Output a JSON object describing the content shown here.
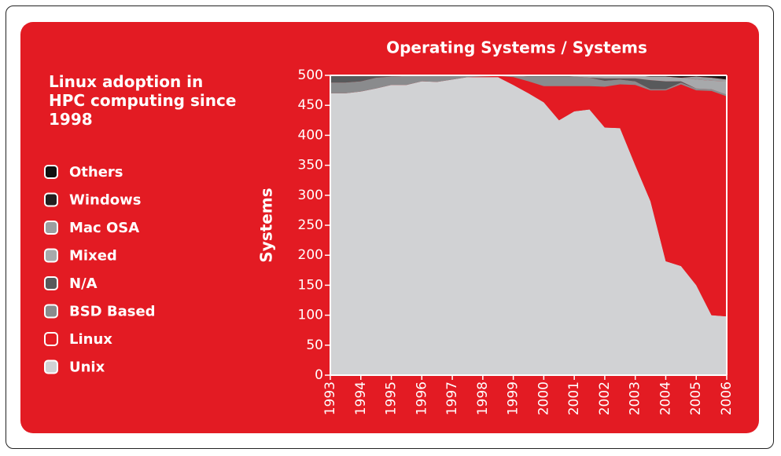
{
  "chart_data": {
    "type": "stacked-area",
    "title": "Operating Systems / Systems",
    "subtitle": "Linux adoption in HPC computing since 1998",
    "ylabel": "Systems",
    "x": [
      1993,
      1993.5,
      1994,
      1994.5,
      1995,
      1995.5,
      1996,
      1996.5,
      1997,
      1997.5,
      1998,
      1998.5,
      1999,
      1999.5,
      2000,
      2000.5,
      2001,
      2001.5,
      2002,
      2002.5,
      2003,
      2003.5,
      2004,
      2004.5,
      2005,
      2005.5,
      2006
    ],
    "xlim": [
      1993,
      2006
    ],
    "xticks": [
      1993,
      1994,
      1995,
      1996,
      1997,
      1998,
      1999,
      2000,
      2001,
      2002,
      2003,
      2004,
      2005,
      2006
    ],
    "ylim": [
      0,
      500
    ],
    "yticks": [
      0,
      50,
      100,
      150,
      200,
      250,
      300,
      350,
      400,
      450,
      500
    ],
    "series": [
      {
        "name": "Unix",
        "color": "#d1d2d4",
        "values": [
          470,
          470,
          473,
          478,
          484,
          484,
          490,
          489,
          493,
          497,
          497,
          497,
          484,
          470,
          455,
          425,
          440,
          443,
          413,
          412,
          350,
          290,
          190,
          182,
          150,
          100,
          98
        ]
      },
      {
        "name": "Linux",
        "color": "#e31b23",
        "values": [
          0,
          0,
          0,
          0,
          0,
          0,
          0,
          0,
          0,
          0,
          1,
          2,
          13,
          20,
          27,
          57,
          42,
          39,
          68,
          73,
          134,
          185,
          285,
          303,
          325,
          374,
          367
        ]
      },
      {
        "name": "BSD Based",
        "color": "#8a8b8d",
        "values": [
          18,
          18,
          17,
          18,
          14,
          15,
          9,
          10,
          6,
          3,
          2,
          1,
          3,
          8,
          16,
          16,
          16,
          14,
          10,
          8,
          6,
          2,
          2,
          3,
          3,
          3,
          3
        ]
      },
      {
        "name": "N/A",
        "color": "#58595b",
        "values": [
          12,
          12,
          10,
          4,
          2,
          1,
          1,
          1,
          1,
          0,
          0,
          0,
          0,
          2,
          2,
          2,
          0,
          0,
          4,
          2,
          5,
          15,
          13,
          2,
          0,
          0,
          0
        ]
      },
      {
        "name": "Mixed",
        "color": "#a7a9ab",
        "values": [
          0,
          0,
          0,
          0,
          0,
          0,
          0,
          0,
          0,
          0,
          0,
          0,
          0,
          0,
          0,
          0,
          2,
          4,
          5,
          5,
          5,
          6,
          8,
          6,
          15,
          14,
          22
        ]
      },
      {
        "name": "Mac OSA",
        "color": "#9c9ea0",
        "values": [
          0,
          0,
          0,
          0,
          0,
          0,
          0,
          0,
          0,
          0,
          0,
          0,
          0,
          0,
          0,
          0,
          0,
          0,
          0,
          0,
          0,
          0,
          0,
          0,
          5,
          5,
          3
        ]
      },
      {
        "name": "Windows",
        "color": "#231f20",
        "values": [
          0,
          0,
          0,
          0,
          0,
          0,
          0,
          0,
          0,
          0,
          0,
          0,
          0,
          0,
          0,
          0,
          0,
          0,
          0,
          0,
          0,
          0,
          0,
          1,
          0,
          1,
          2
        ]
      },
      {
        "name": "Others",
        "color": "#111111",
        "values": [
          0,
          0,
          0,
          0,
          0,
          0,
          0,
          0,
          0,
          0,
          0,
          0,
          0,
          0,
          0,
          0,
          0,
          0,
          0,
          0,
          0,
          2,
          2,
          3,
          2,
          3,
          5
        ]
      }
    ]
  }
}
